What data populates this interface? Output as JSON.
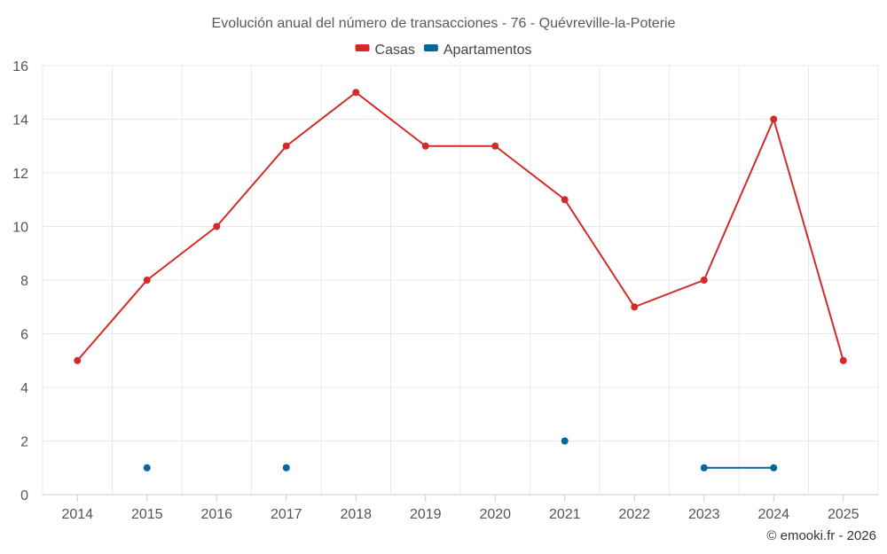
{
  "chart_data": {
    "type": "line",
    "title": "Evolución anual del número de transacciones - 76 - Quévreville-la-Poterie",
    "xlabel": "",
    "ylabel": "",
    "categories": [
      "2014",
      "2015",
      "2016",
      "2017",
      "2018",
      "2019",
      "2020",
      "2021",
      "2022",
      "2023",
      "2024",
      "2025"
    ],
    "ylim": [
      0,
      16
    ],
    "yticks": [
      0,
      2,
      4,
      6,
      8,
      10,
      12,
      14,
      16
    ],
    "grid": true,
    "legend_position": "top-center",
    "series": [
      {
        "name": "Casas",
        "color": "#d42a2a",
        "values": [
          5,
          8,
          10,
          13,
          15,
          13,
          13,
          11,
          7,
          8,
          14,
          5
        ]
      },
      {
        "name": "Apartamentos",
        "color": "#04679e",
        "values": [
          null,
          1,
          null,
          1,
          null,
          null,
          null,
          2,
          null,
          1,
          1,
          null
        ]
      }
    ]
  },
  "credit": "© emooki.fr - 2026"
}
